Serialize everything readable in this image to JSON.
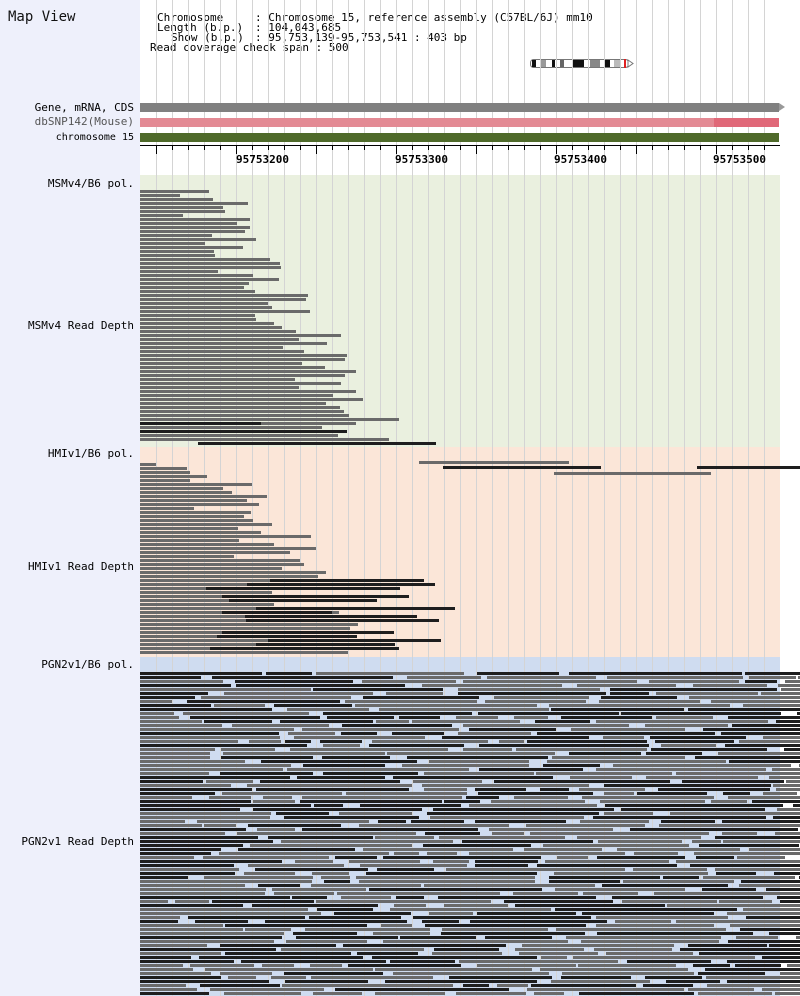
{
  "map_title": "Map View",
  "info": {
    "chromosome_label": "Chromosome",
    "chromosome_value": ": Chromosome 15, reference assembly (C57BL/6J) mm10",
    "length_label": "Length (b.p.)",
    "length_value": ": 104,043,685",
    "show_label": "Show (b.p.)",
    "show_value": ": 95,753,139-95,753,541 : 403 bp",
    "coverage_line": "Read coverage check span : 500"
  },
  "tracks": {
    "gene": "Gene, mRNA, CDS",
    "snp": "dbSNP142(Mouse)",
    "chrom": "chromosome 15"
  },
  "ruler": {
    "labels": [
      "95753200",
      "95753300",
      "95753400",
      "95753500"
    ]
  },
  "sections": [
    {
      "pol_label": "MSMv4/B6 pol.",
      "depth_label": "MSMv4 Read Depth",
      "color": "#eaf0df"
    },
    {
      "pol_label": "HMIv1/B6 pol.",
      "depth_label": "HMIv1 Read Depth",
      "color": "#fbe6d8"
    },
    {
      "pol_label": "PGN2v1/B6 pol.",
      "depth_label": "PGN2v1 Read Depth",
      "color": "#cfdcf0"
    }
  ],
  "colors": {
    "gene": "#808080",
    "snp": "#e38a94",
    "snp_highlight": "#e06878",
    "chromosome": "#4f6a2a",
    "read_gray": "#6a6a6a",
    "read_black": "#1e1e1e"
  }
}
